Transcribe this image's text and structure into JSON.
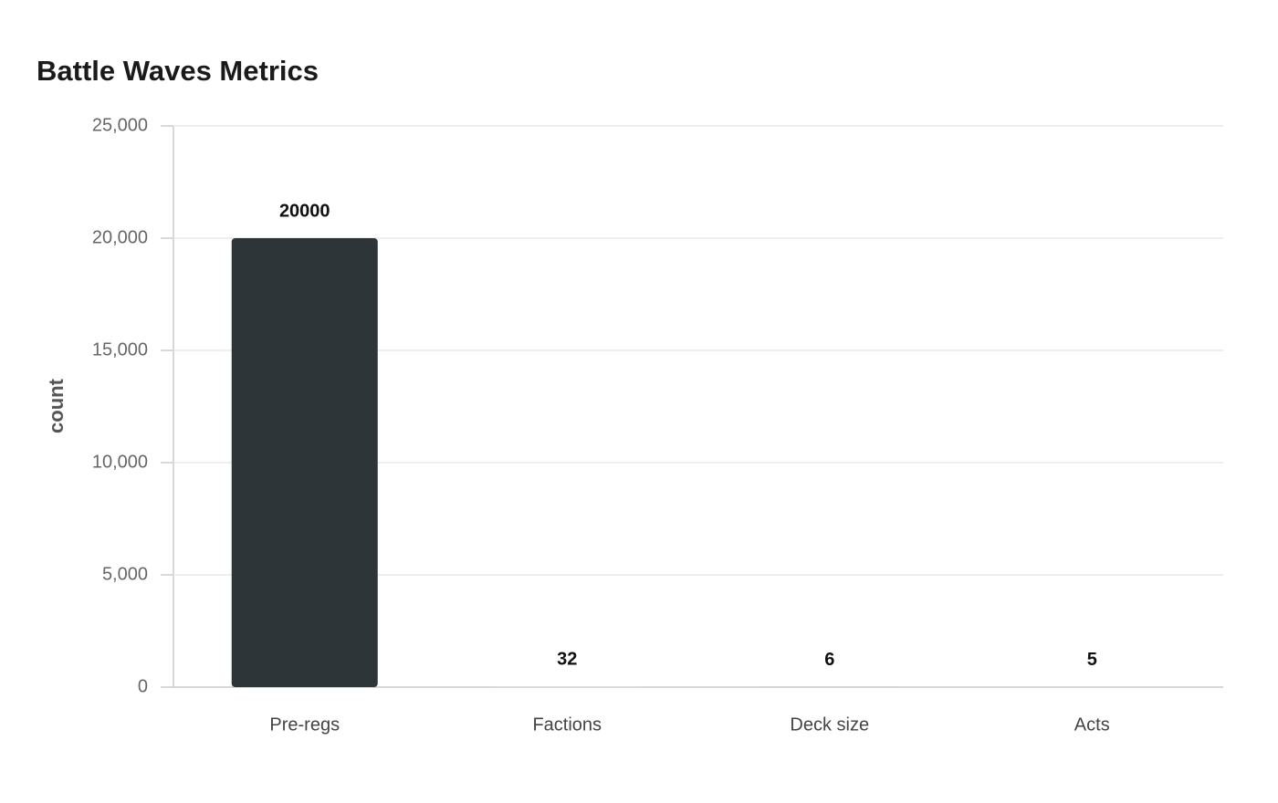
{
  "chart_data": {
    "type": "bar",
    "title": "Battle Waves Metrics",
    "y_label": "count",
    "categories": [
      "Pre-regs",
      "Factions",
      "Deck size",
      "Acts"
    ],
    "values": [
      20000,
      32,
      6,
      5
    ],
    "colors": [
      "#2e3538",
      "#d9dddd",
      "#a8b2b2",
      "#b8c0c0"
    ],
    "ylim": [
      0,
      25000
    ],
    "yticks": [
      0,
      {
        "value": 5000,
        "label": "5,000"
      },
      {
        "value": 10000,
        "label": "10,000"
      },
      {
        "value": 15000,
        "label": "15,000"
      },
      {
        "value": 20000,
        "label": "20,000"
      },
      {
        "value": 25000,
        "label": "25,000"
      }
    ],
    "grid": true
  }
}
